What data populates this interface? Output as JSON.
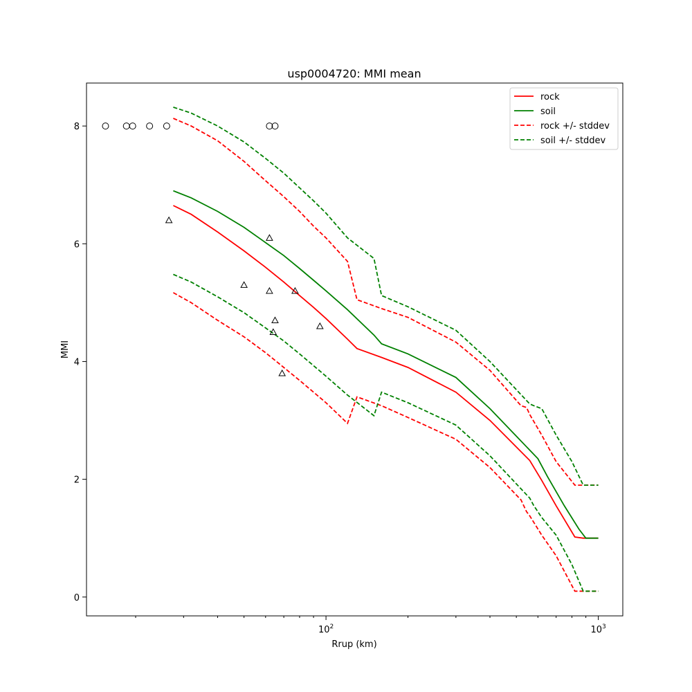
{
  "chart_data": {
    "type": "line",
    "title": "usp0004720: MMI mean",
    "xlabel": "Rrup (km)",
    "ylabel": "MMI",
    "xscale": "log",
    "xlim": [
      13.2,
      1230
    ],
    "ylim": [
      -0.32,
      8.73
    ],
    "grid": false,
    "legend_position": "top-right",
    "x_ticks": [
      {
        "value": 100,
        "base": "10",
        "exp": "2"
      },
      {
        "value": 1000,
        "base": "10",
        "exp": "3"
      }
    ],
    "y_ticks": [
      0,
      2,
      4,
      6,
      8
    ],
    "legend": [
      {
        "label": "rock",
        "color": "#ff0000",
        "dash": "solid"
      },
      {
        "label": "soil",
        "color": "#008000",
        "dash": "solid"
      },
      {
        "label": "rock +/- stddev",
        "color": "#ff0000",
        "dash": "dashed"
      },
      {
        "label": "soil +/- stddev",
        "color": "#008000",
        "dash": "dashed"
      }
    ],
    "series": [
      {
        "name": "rock",
        "color": "#ff0000",
        "dash": "solid",
        "x": [
          27.5,
          32,
          40,
          50,
          60,
          70,
          80,
          90,
          100,
          120,
          130,
          160,
          200,
          300,
          400,
          560,
          620,
          700,
          820,
          880,
          1000
        ],
        "y": [
          6.65,
          6.5,
          6.2,
          5.88,
          5.6,
          5.35,
          5.12,
          4.92,
          4.73,
          4.38,
          4.22,
          4.07,
          3.9,
          3.48,
          3.0,
          2.32,
          1.98,
          1.55,
          1.02,
          1.0,
          1.0
        ]
      },
      {
        "name": "soil",
        "color": "#008000",
        "dash": "solid",
        "x": [
          27.5,
          32,
          40,
          50,
          60,
          70,
          80,
          90,
          100,
          120,
          150,
          160,
          200,
          300,
          400,
          600,
          650,
          750,
          850,
          900,
          1000
        ],
        "y": [
          6.9,
          6.78,
          6.55,
          6.28,
          6.02,
          5.8,
          5.58,
          5.38,
          5.2,
          4.88,
          4.45,
          4.3,
          4.13,
          3.73,
          3.2,
          2.35,
          2.05,
          1.55,
          1.15,
          1.0,
          1.0
        ]
      },
      {
        "name": "rock +/- stddev",
        "color": "#ff0000",
        "dash": "dashed",
        "x": [
          27.5,
          32,
          40,
          50,
          60,
          70,
          80,
          90,
          100,
          120,
          130,
          160,
          200,
          300,
          400,
          520,
          545,
          560,
          620,
          700,
          820,
          880,
          1000
        ],
        "y": [
          8.13,
          8.0,
          7.75,
          7.4,
          7.07,
          6.8,
          6.55,
          6.3,
          6.1,
          5.7,
          5.05,
          4.9,
          4.75,
          4.33,
          3.85,
          3.25,
          3.22,
          3.1,
          2.75,
          2.3,
          1.9,
          1.9,
          1.9
        ]
      },
      {
        "name": "rock +/- stddev",
        "color": "#ff0000",
        "dash": "dashed",
        "x": [
          27.5,
          32,
          40,
          50,
          60,
          70,
          80,
          90,
          100,
          120,
          130,
          160,
          200,
          300,
          400,
          520,
          545,
          560,
          620,
          700,
          820,
          880,
          1000
        ],
        "y": [
          5.17,
          5.0,
          4.7,
          4.42,
          4.15,
          3.9,
          3.68,
          3.48,
          3.3,
          2.95,
          3.4,
          3.25,
          3.05,
          2.68,
          2.2,
          1.65,
          1.45,
          1.38,
          1.05,
          0.7,
          0.1,
          0.1,
          0.1
        ]
      },
      {
        "name": "soil +/- stddev",
        "color": "#008000",
        "dash": "dashed",
        "x": [
          27.5,
          32,
          40,
          50,
          60,
          70,
          80,
          90,
          100,
          120,
          150,
          160,
          200,
          300,
          400,
          560,
          580,
          620,
          700,
          800,
          880,
          1000
        ],
        "y": [
          8.32,
          8.22,
          8.0,
          7.73,
          7.45,
          7.2,
          6.95,
          6.73,
          6.52,
          6.1,
          5.75,
          5.12,
          4.93,
          4.53,
          4.0,
          3.28,
          3.25,
          3.2,
          2.75,
          2.3,
          1.9,
          1.9
        ]
      },
      {
        "name": "soil +/- stddev",
        "color": "#008000",
        "dash": "dashed",
        "x": [
          27.5,
          32,
          40,
          50,
          60,
          70,
          80,
          90,
          100,
          120,
          150,
          160,
          200,
          300,
          400,
          560,
          580,
          620,
          700,
          800,
          880,
          1000
        ],
        "y": [
          5.48,
          5.35,
          5.1,
          4.83,
          4.57,
          4.35,
          4.13,
          3.93,
          3.75,
          3.43,
          3.08,
          3.48,
          3.3,
          2.92,
          2.4,
          1.68,
          1.55,
          1.35,
          1.05,
          0.55,
          0.1,
          0.1
        ]
      }
    ],
    "observations": [
      {
        "marker": "circle",
        "points": [
          [
            15.5,
            8
          ],
          [
            18.5,
            8
          ],
          [
            19.5,
            8
          ],
          [
            22.5,
            8
          ],
          [
            26,
            8
          ],
          [
            62,
            8
          ],
          [
            65,
            8
          ]
        ]
      },
      {
        "marker": "triangle",
        "points": [
          [
            26.5,
            6.4
          ],
          [
            62,
            6.1
          ],
          [
            50,
            5.3
          ],
          [
            62,
            5.2
          ],
          [
            77,
            5.2
          ],
          [
            65,
            4.7
          ],
          [
            64,
            4.5
          ],
          [
            95,
            4.6
          ],
          [
            69,
            3.8
          ]
        ]
      }
    ]
  }
}
